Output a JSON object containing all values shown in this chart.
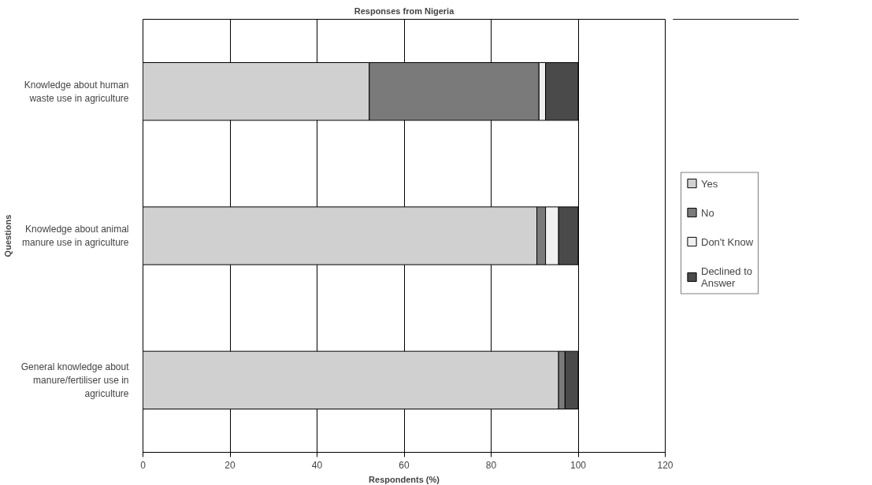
{
  "chart_data": {
    "type": "bar",
    "orientation": "horizontal",
    "stacked": true,
    "title": "Responses from Nigeria",
    "xlabel": "Respondents (%)",
    "ylabel": "Questions",
    "categories": [
      "Knowledge about human waste use in agriculture",
      "Knowledge about animal manure use in agriculture",
      "General knowledge about manure/fertiliser use in agriculture"
    ],
    "series": [
      {
        "name": "Yes",
        "color": "#d0d0d0",
        "values": [
          52,
          90.5,
          95.5
        ]
      },
      {
        "name": "No",
        "color": "#7a7a7a",
        "values": [
          39,
          2,
          1.5
        ]
      },
      {
        "name": "Don't Know",
        "color": "#f0f0f0",
        "values": [
          1.5,
          3,
          0
        ]
      },
      {
        "name": "Declined to Answer",
        "color": "#4a4a4a",
        "values": [
          7.5,
          4.5,
          3
        ]
      }
    ],
    "xlim": [
      0,
      120
    ],
    "xticks": [
      0,
      20,
      40,
      60,
      80,
      100,
      120
    ],
    "grid": "x",
    "legend": "right"
  }
}
